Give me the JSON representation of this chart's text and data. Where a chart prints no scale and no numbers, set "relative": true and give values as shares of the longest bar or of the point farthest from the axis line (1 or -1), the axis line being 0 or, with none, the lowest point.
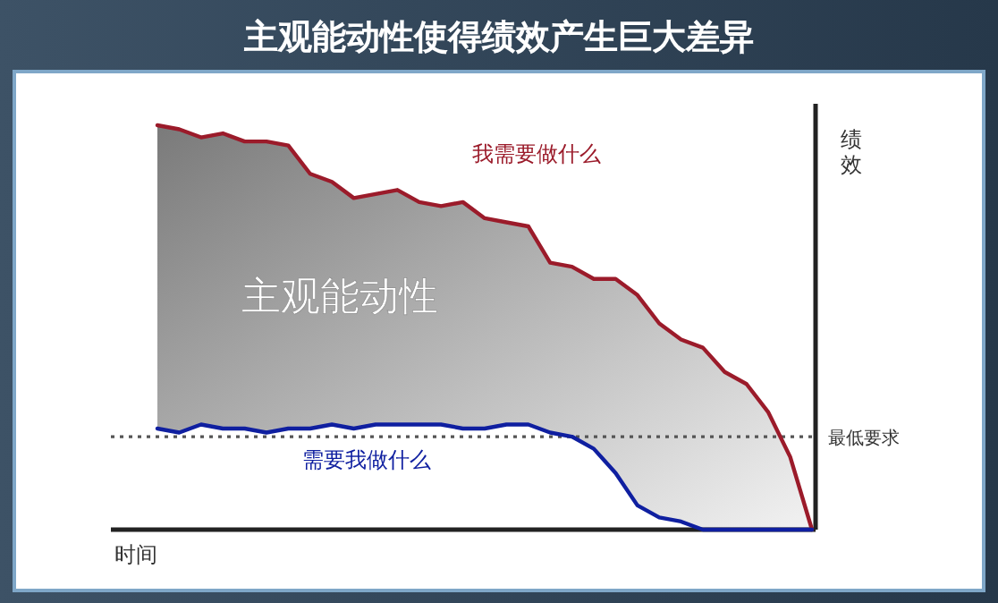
{
  "chart_data": {
    "type": "line",
    "title": "主观能动性使得绩效产生巨大差异",
    "xlabel": "时间",
    "ylabel": "绩效",
    "relative": true,
    "categories": [
      null,
      null,
      null,
      null,
      null,
      null,
      null,
      null,
      null,
      null,
      null,
      null,
      null,
      null,
      null,
      null,
      null,
      null,
      null,
      null,
      null,
      null,
      null,
      null,
      null,
      null,
      null,
      null,
      null,
      null,
      null
    ],
    "series": [
      {
        "name": "我需要做什么",
        "color": "#9b1b2a",
        "values": [
          1.0,
          0.99,
          0.97,
          0.98,
          0.96,
          0.96,
          0.95,
          0.88,
          0.86,
          0.82,
          0.83,
          0.84,
          0.81,
          0.8,
          0.81,
          0.77,
          0.76,
          0.75,
          0.66,
          0.65,
          0.62,
          0.62,
          0.58,
          0.51,
          0.47,
          0.45,
          0.39,
          0.36,
          0.29,
          0.18,
          0
        ],
        "upper": [
          1.0,
          0.99,
          0.97,
          0.98,
          0.96,
          0.96,
          0.95,
          0.88,
          0.86,
          0.82,
          0.83,
          0.84,
          0.81,
          0.8,
          0.81,
          0.77,
          0.76,
          0.75,
          0.66,
          0.65,
          0.62,
          0.62,
          0.58,
          0.51,
          0.47,
          0.45,
          0.39,
          0.36,
          0.29,
          0.18,
          0
        ],
        "lower": [
          0.25,
          0.24,
          0.26,
          0.25,
          0.25,
          0.24,
          0.25,
          0.25,
          0.26,
          0.25,
          0.26,
          0.26,
          0.26,
          0.26,
          0.25,
          0.25,
          0.26,
          0.26,
          0.24,
          0.23,
          0.2,
          0.14,
          0.06,
          0.03,
          0.02,
          0,
          0,
          0,
          0,
          0,
          0
        ]
      },
      {
        "name": "需要我做什么",
        "color": "#0f1fa0",
        "values": [
          0.25,
          0.24,
          0.26,
          0.25,
          0.25,
          0.24,
          0.25,
          0.25,
          0.26,
          0.25,
          0.26,
          0.26,
          0.26,
          0.26,
          0.25,
          0.25,
          0.26,
          0.26,
          0.24,
          0.23,
          0.2,
          0.14,
          0.06,
          0.03,
          0.02,
          0,
          0,
          0,
          0,
          0,
          0
        ]
      }
    ],
    "ref_lines": [
      {
        "axis": "y",
        "value": 0.23,
        "label": "最低要求",
        "color": "#555555",
        "line_style": "dotted"
      }
    ],
    "annotations": [
      "主观能动性"
    ],
    "marker": "none"
  }
}
